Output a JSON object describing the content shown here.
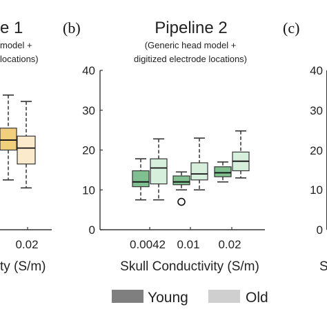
{
  "figure": {
    "panel_a": {
      "letter": "",
      "title_fragment": "e 1",
      "subtitle_lines": [
        "model +",
        "locations)"
      ],
      "xlabel_fragment": "ty (S/m)",
      "tick_fragment": "0.02"
    },
    "panel_b": {
      "letter": "(b)",
      "title": "Pipeline 2",
      "subtitle_lines": [
        "(Generic head model +",
        "digitized electrode locations)"
      ]
    },
    "panel_c": {
      "letter": "(c)",
      "ytick_fragments": [
        "40",
        "30",
        "20",
        "10",
        "0"
      ],
      "xlabel_fragment": "S"
    },
    "legend": {
      "young": "Young",
      "old": "Old"
    }
  },
  "colors": {
    "young_b": "#7fbf90",
    "old_b": "#d6eedc",
    "young_a": "#f2cf7c",
    "old_a": "#fbeacb",
    "legend_young": "#7f7f7f",
    "legend_old": "#cfcfcf",
    "stroke": "#333333"
  },
  "chart_data": [
    {
      "type": "box",
      "panel": "b",
      "title": "Pipeline 2",
      "subtitle": "(Generic head model + digitized electrode locations)",
      "xlabel": "Skull Conductivity (S/m)",
      "ylabel": "",
      "categories": [
        "0.0042",
        "0.01",
        "0.02"
      ],
      "ylim": [
        0,
        40
      ],
      "yticks": [
        0,
        10,
        20,
        30,
        40
      ],
      "legend": "bottom",
      "series": [
        {
          "name": "Young",
          "boxes": [
            {
              "min": 7.5,
              "q1": 10.8,
              "median": 12.0,
              "q3": 14.8,
              "max": 17.8,
              "outliers": []
            },
            {
              "min": 10.0,
              "q1": 11.3,
              "median": 12.0,
              "q3": 13.5,
              "max": 14.5,
              "outliers": [
                7.0
              ]
            },
            {
              "min": 12.0,
              "q1": 13.3,
              "median": 14.3,
              "q3": 15.8,
              "max": 17.0,
              "outliers": []
            }
          ]
        },
        {
          "name": "Old",
          "boxes": [
            {
              "min": 7.5,
              "q1": 11.5,
              "median": 15.5,
              "q3": 17.8,
              "max": 22.8,
              "outliers": []
            },
            {
              "min": 10.0,
              "q1": 12.5,
              "median": 14.0,
              "q3": 16.8,
              "max": 23.0,
              "outliers": []
            },
            {
              "min": 13.0,
              "q1": 14.8,
              "median": 17.2,
              "q3": 19.5,
              "max": 24.8,
              "outliers": []
            }
          ]
        }
      ]
    },
    {
      "type": "box",
      "panel": "a",
      "categories": [
        "",
        "0.02"
      ],
      "ylim": [
        0,
        40
      ],
      "series": [
        {
          "name": "Young",
          "boxes": [
            {
              "min": 12.5,
              "q1": 20.0,
              "median": 22.5,
              "q3": 25.5,
              "max": 33.8,
              "outliers": []
            }
          ]
        },
        {
          "name": "Old",
          "boxes": [
            {
              "min": 10.5,
              "q1": 16.5,
              "median": 20.5,
              "q3": 23.5,
              "max": 32.2,
              "outliers": []
            }
          ]
        }
      ]
    }
  ]
}
